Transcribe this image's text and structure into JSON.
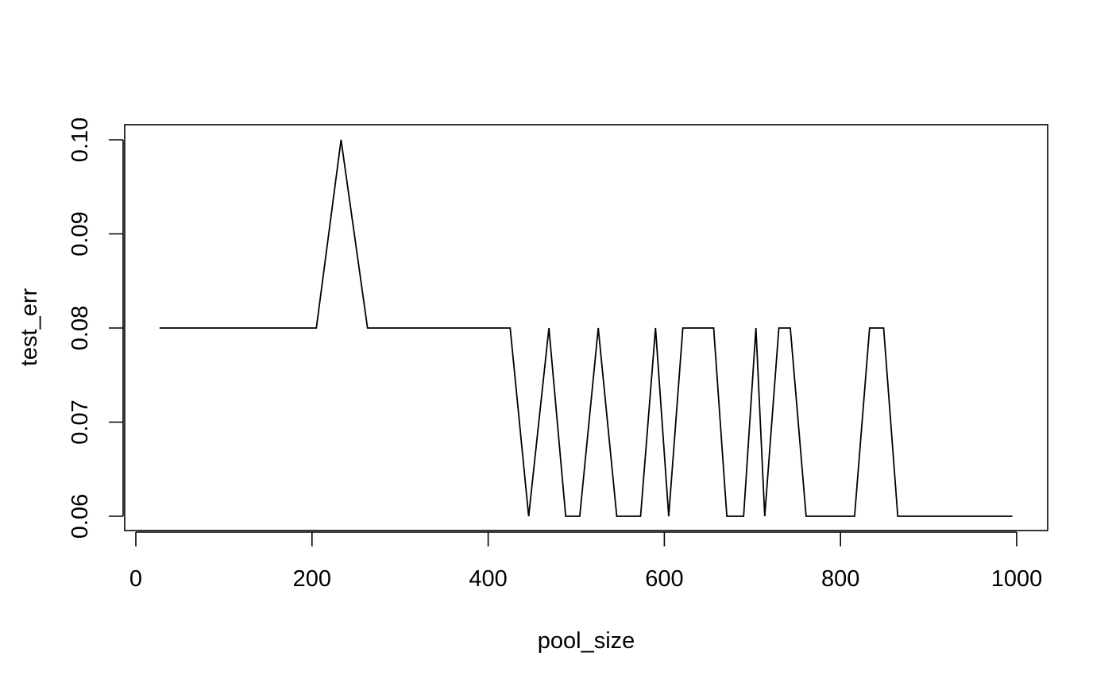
{
  "chart_data": {
    "type": "line",
    "xlabel": "pool_size",
    "ylabel": "test_err",
    "xlim": [
      0,
      1000
    ],
    "ylim": [
      0.06,
      0.1
    ],
    "xticks": [
      0,
      200,
      400,
      600,
      800,
      1000
    ],
    "xtick_labels": [
      "0",
      "200",
      "400",
      "600",
      "800",
      "1000"
    ],
    "yticks": [
      0.06,
      0.07,
      0.08,
      0.09,
      0.1
    ],
    "ytick_labels": [
      "0.06",
      "0.07",
      "0.08",
      "0.09",
      "0.10"
    ],
    "grid": false,
    "line_color": "#000000",
    "series": [
      {
        "x": [
          27,
          205,
          233,
          263,
          425,
          446,
          469,
          488,
          504,
          525,
          546,
          573,
          590,
          605,
          621,
          656,
          671,
          690,
          704,
          714,
          730,
          743,
          761,
          816,
          833,
          849,
          865,
          995
        ],
        "y": [
          0.08,
          0.08,
          0.1,
          0.08,
          0.08,
          0.06,
          0.08,
          0.06,
          0.06,
          0.08,
          0.06,
          0.06,
          0.08,
          0.06,
          0.08,
          0.08,
          0.06,
          0.06,
          0.08,
          0.06,
          0.08,
          0.08,
          0.06,
          0.06,
          0.08,
          0.08,
          0.06,
          0.06
        ]
      }
    ]
  }
}
